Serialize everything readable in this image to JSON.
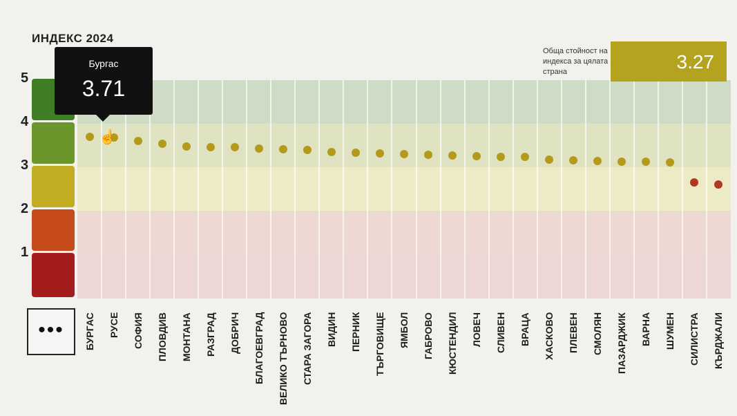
{
  "title": "ИНДЕКС 2024",
  "tooltip": {
    "name": "Бургас",
    "value": "3.71"
  },
  "total": {
    "label": "Обща стойност на индекса за цялата страна",
    "value": "3.27",
    "color": "#b4a31e"
  },
  "more_button": {
    "label": "•••"
  },
  "y_ticks": [
    "5",
    "4",
    "3",
    "2",
    "1"
  ],
  "scale_colors": [
    "#3f7e25",
    "#6a962a",
    "#c2ad22",
    "#c54b1b",
    "#a41d1d"
  ],
  "chart_data": {
    "type": "scatter",
    "title": "ИНДЕКС 2024",
    "ylim": [
      0,
      5
    ],
    "yticks": [
      1,
      2,
      3,
      4,
      5
    ],
    "categories": [
      "БУРГАС",
      "РУСЕ",
      "СОФИЯ",
      "ПЛОВДИВ",
      "МОНТАНА",
      "РАЗГРАД",
      "ДОБРИЧ",
      "БЛАГОЕВГРАД",
      "ВЕЛИКО ТЪРНОВО",
      "СТАРА ЗАГОРА",
      "ВИДИН",
      "ПЕРНИК",
      "ТЪРГОВИЩЕ",
      "ЯМБОЛ",
      "ГАБРОВО",
      "КЮСТЕНДИЛ",
      "ЛОВЕЧ",
      "СЛИВЕН",
      "ВРАЦА",
      "ХАСКОВО",
      "ПЛЕВЕН",
      "СМОЛЯН",
      "ПАЗАРДЖИК",
      "ВАРНА",
      "ШУМЕН",
      "СИЛИСТРА",
      "КЪРДЖАЛИ"
    ],
    "values": [
      3.71,
      3.68,
      3.61,
      3.55,
      3.48,
      3.47,
      3.46,
      3.43,
      3.42,
      3.4,
      3.36,
      3.34,
      3.32,
      3.31,
      3.29,
      3.27,
      3.26,
      3.25,
      3.24,
      3.18,
      3.16,
      3.15,
      3.14,
      3.13,
      3.11,
      2.66,
      2.61
    ],
    "dot_colors": [
      "#b49a1b",
      "#b49a1b",
      "#b49a1b",
      "#b49a1b",
      "#b49a1b",
      "#b49a1b",
      "#b49a1b",
      "#b49a1b",
      "#b49a1b",
      "#b49a1b",
      "#b49a1b",
      "#b49a1b",
      "#b49a1b",
      "#b49a1b",
      "#b49a1b",
      "#b49a1b",
      "#b49a1b",
      "#b49a1b",
      "#b49a1b",
      "#b49a1b",
      "#b49a1b",
      "#b49a1b",
      "#b49a1b",
      "#b49a1b",
      "#b49a1b",
      "#b03820",
      "#b03820"
    ]
  }
}
